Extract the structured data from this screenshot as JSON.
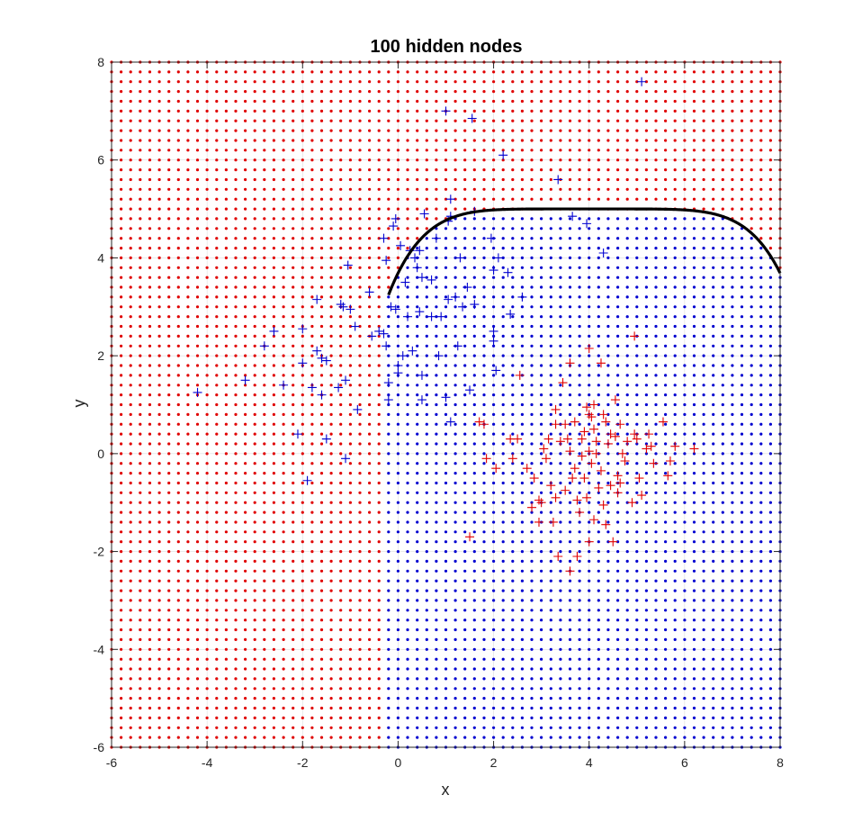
{
  "chart_data": {
    "type": "scatter",
    "title": "100 hidden nodes",
    "xlabel": "x",
    "ylabel": "y",
    "xlim": [
      -6,
      8
    ],
    "ylim": [
      -6,
      8
    ],
    "xticks": [
      "-6",
      "-4",
      "-2",
      "0",
      "2",
      "4",
      "6",
      "8"
    ],
    "yticks": [
      "-6",
      "-4",
      "-2",
      "0",
      "2",
      "4",
      "6",
      "8"
    ],
    "grid": true,
    "colors": {
      "class_a": "#e00000",
      "class_b": "#0000d0",
      "boundary": "#000000",
      "axes": "#262626",
      "grid": "#d0d0d0"
    },
    "decision_grid": {
      "x_start": -6,
      "x_end": 8,
      "y_start": -6,
      "y_end": 8,
      "step": 0.2,
      "boundary_rule": "class_a when y > g(x), with g(x) = 5 - 5*(0.8 - 0.2*x)^6 for x >= -0.2, else class_b"
    },
    "series": [
      {
        "marker": "+",
        "color": "#0000d0",
        "points": [
          [
            -4.2,
            1.25
          ],
          [
            -3.2,
            1.5
          ],
          [
            -2.8,
            2.2
          ],
          [
            -2.6,
            2.5
          ],
          [
            -2.4,
            1.4
          ],
          [
            -2.1,
            0.4
          ],
          [
            -2.0,
            2.55
          ],
          [
            -2.0,
            1.85
          ],
          [
            -1.9,
            -0.55
          ],
          [
            -1.8,
            1.35
          ],
          [
            -1.7,
            3.15
          ],
          [
            -1.7,
            2.1
          ],
          [
            -1.6,
            1.2
          ],
          [
            -1.6,
            1.95
          ],
          [
            -1.5,
            1.9
          ],
          [
            -1.5,
            0.3
          ],
          [
            -1.25,
            1.35
          ],
          [
            -1.2,
            3.05
          ],
          [
            -1.15,
            3.0
          ],
          [
            -1.1,
            1.5
          ],
          [
            -1.1,
            -0.1
          ],
          [
            -1.05,
            3.85
          ],
          [
            -1.0,
            2.95
          ],
          [
            -0.9,
            2.6
          ],
          [
            -0.85,
            0.9
          ],
          [
            -0.6,
            3.3
          ],
          [
            -0.55,
            2.4
          ],
          [
            -0.4,
            2.5
          ],
          [
            -0.3,
            2.45
          ],
          [
            -0.3,
            4.4
          ],
          [
            -0.25,
            3.95
          ],
          [
            -0.25,
            2.2
          ],
          [
            -0.2,
            1.45
          ],
          [
            -0.2,
            1.1
          ],
          [
            -0.15,
            3.0
          ],
          [
            -0.1,
            4.65
          ],
          [
            -0.05,
            4.8
          ],
          [
            -0.05,
            2.95
          ],
          [
            0.0,
            1.65
          ],
          [
            0.0,
            1.8
          ],
          [
            0.05,
            4.25
          ],
          [
            0.1,
            2.0
          ],
          [
            0.15,
            3.5
          ],
          [
            0.2,
            2.8
          ],
          [
            0.25,
            4.15
          ],
          [
            0.3,
            2.1
          ],
          [
            0.35,
            4.0
          ],
          [
            0.4,
            3.8
          ],
          [
            0.45,
            4.15
          ],
          [
            0.45,
            2.9
          ],
          [
            0.5,
            3.6
          ],
          [
            0.5,
            1.1
          ],
          [
            0.5,
            1.6
          ],
          [
            0.55,
            4.9
          ],
          [
            0.7,
            3.55
          ],
          [
            0.7,
            2.8
          ],
          [
            0.8,
            4.4
          ],
          [
            0.85,
            2.0
          ],
          [
            0.9,
            2.8
          ],
          [
            1.0,
            7.0
          ],
          [
            1.0,
            1.15
          ],
          [
            1.05,
            4.75
          ],
          [
            1.05,
            3.15
          ],
          [
            1.1,
            5.2
          ],
          [
            1.1,
            4.85
          ],
          [
            1.1,
            0.65
          ],
          [
            1.2,
            3.2
          ],
          [
            1.25,
            2.2
          ],
          [
            1.3,
            4.0
          ],
          [
            1.35,
            3.0
          ],
          [
            1.45,
            3.4
          ],
          [
            1.5,
            1.3
          ],
          [
            1.55,
            6.85
          ],
          [
            1.6,
            4.95
          ],
          [
            1.6,
            3.05
          ],
          [
            1.95,
            4.4
          ],
          [
            2.0,
            3.75
          ],
          [
            2.0,
            2.5
          ],
          [
            2.0,
            2.3
          ],
          [
            2.05,
            1.7
          ],
          [
            2.1,
            4.0
          ],
          [
            2.2,
            6.1
          ],
          [
            2.3,
            3.7
          ],
          [
            2.35,
            2.85
          ],
          [
            2.6,
            3.2
          ],
          [
            3.35,
            5.6
          ],
          [
            3.65,
            4.85
          ],
          [
            3.95,
            4.7
          ],
          [
            4.3,
            4.1
          ],
          [
            5.1,
            7.6
          ]
        ]
      },
      {
        "marker": "+",
        "color": "#e00000",
        "points": [
          [
            1.5,
            -1.7
          ],
          [
            1.7,
            0.65
          ],
          [
            1.8,
            0.6
          ],
          [
            1.85,
            -0.1
          ],
          [
            2.05,
            -0.3
          ],
          [
            2.35,
            0.3
          ],
          [
            2.4,
            -0.1
          ],
          [
            2.5,
            0.3
          ],
          [
            2.55,
            1.6
          ],
          [
            2.7,
            -0.3
          ],
          [
            2.8,
            -1.1
          ],
          [
            2.85,
            -0.5
          ],
          [
            2.95,
            -1.4
          ],
          [
            3.0,
            -1.0
          ],
          [
            3.05,
            0.1
          ],
          [
            3.1,
            -0.1
          ],
          [
            3.2,
            -0.65
          ],
          [
            3.25,
            -1.4
          ],
          [
            3.3,
            0.9
          ],
          [
            3.35,
            -2.1
          ],
          [
            3.45,
            1.45
          ],
          [
            3.5,
            0.6
          ],
          [
            3.6,
            -2.4
          ],
          [
            3.6,
            1.85
          ],
          [
            3.65,
            -0.5
          ],
          [
            3.7,
            -0.3
          ],
          [
            3.75,
            -2.1
          ],
          [
            3.8,
            -1.2
          ],
          [
            3.85,
            0.3
          ],
          [
            3.9,
            -0.5
          ],
          [
            3.95,
            0.95
          ],
          [
            4.0,
            -1.8
          ],
          [
            4.0,
            2.15
          ],
          [
            4.05,
            -0.2
          ],
          [
            4.1,
            0.5
          ],
          [
            4.15,
            0.0
          ],
          [
            4.2,
            -0.7
          ],
          [
            4.25,
            1.85
          ],
          [
            4.3,
            0.8
          ],
          [
            4.3,
            -1.05
          ],
          [
            4.35,
            -1.45
          ],
          [
            4.4,
            0.2
          ],
          [
            4.45,
            -0.65
          ],
          [
            4.5,
            -1.8
          ],
          [
            4.55,
            1.1
          ],
          [
            4.6,
            -0.8
          ],
          [
            4.65,
            0.6
          ],
          [
            4.7,
            0.0
          ],
          [
            4.9,
            -1.0
          ],
          [
            4.95,
            2.4
          ],
          [
            5.0,
            0.3
          ],
          [
            5.05,
            -0.5
          ],
          [
            5.1,
            -0.85
          ],
          [
            5.2,
            0.1
          ],
          [
            5.25,
            0.4
          ],
          [
            5.3,
            0.15
          ],
          [
            5.55,
            0.65
          ],
          [
            5.65,
            -0.45
          ],
          [
            5.7,
            -0.15
          ],
          [
            6.2,
            0.1
          ],
          [
            3.3,
            -0.9
          ],
          [
            3.55,
            0.3
          ],
          [
            3.75,
            -0.95
          ],
          [
            3.95,
            -0.9
          ],
          [
            4.05,
            0.75
          ],
          [
            4.1,
            -1.35
          ],
          [
            4.25,
            -0.35
          ],
          [
            4.45,
            0.4
          ],
          [
            4.6,
            -0.45
          ],
          [
            4.75,
            -0.15
          ],
          [
            3.85,
            -0.05
          ],
          [
            3.4,
            0.25
          ],
          [
            4.15,
            0.25
          ],
          [
            3.9,
            0.45
          ],
          [
            4.35,
            0.65
          ],
          [
            4.55,
            0.35
          ],
          [
            3.6,
            0.05
          ],
          [
            4.0,
            0.05
          ],
          [
            3.7,
            0.65
          ],
          [
            4.8,
            0.25
          ],
          [
            5.35,
            -0.2
          ],
          [
            4.95,
            0.4
          ],
          [
            3.15,
            0.3
          ],
          [
            5.8,
            0.15
          ],
          [
            4.1,
            1.0
          ],
          [
            3.3,
            0.6
          ],
          [
            2.95,
            -0.95
          ],
          [
            4.65,
            -0.6
          ],
          [
            3.5,
            -0.75
          ],
          [
            4.0,
            0.8
          ]
        ]
      }
    ]
  }
}
